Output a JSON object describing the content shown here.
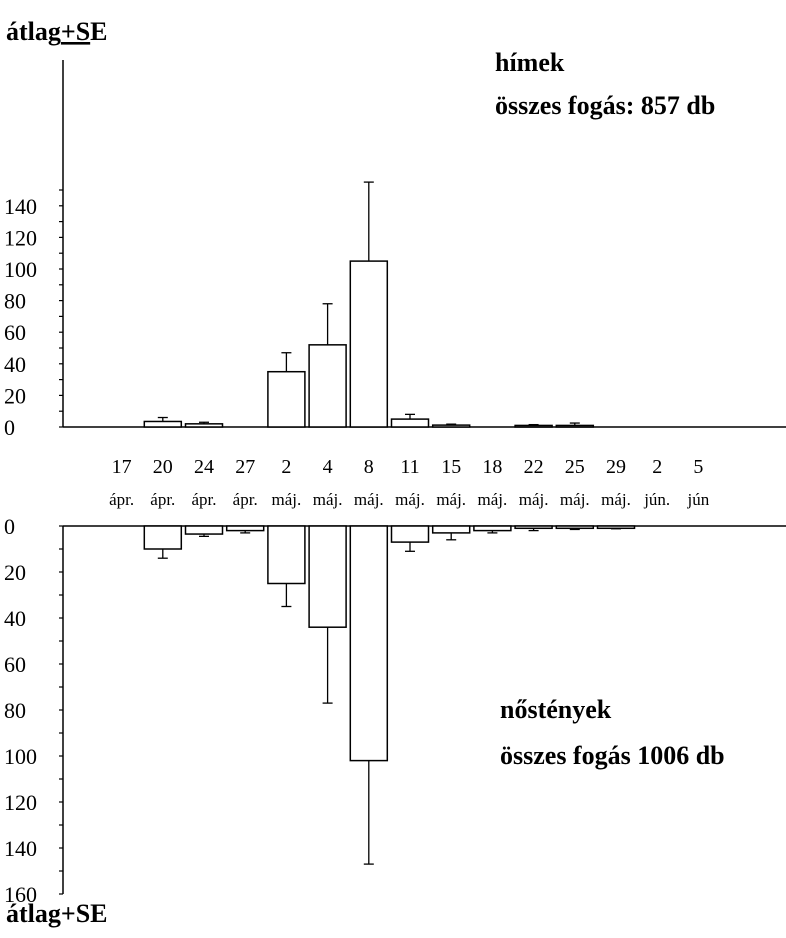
{
  "chart_data": [
    {
      "type": "bar",
      "panel": "top",
      "title": "hímek",
      "subtitle": "összes fogás: 857 db",
      "ylabel_prefix": "átlag",
      "ylabel_underlined": "+S",
      "ylabel_suffix": "E",
      "ylim": [
        0,
        150
      ],
      "yticks": [
        "0",
        "20",
        "40",
        "60",
        "80",
        "100",
        "120",
        "140"
      ],
      "values": [
        0,
        3.5,
        2,
        0,
        35,
        52,
        105,
        5,
        1.2,
        0,
        1,
        1,
        0,
        0,
        0
      ],
      "errors": [
        0,
        6,
        3,
        0,
        47,
        78,
        155,
        8,
        1.8,
        0,
        1.5,
        2.5,
        0,
        0,
        0
      ]
    },
    {
      "type": "bar",
      "panel": "bottom",
      "title": "nőstények",
      "subtitle": "összes fogás 1006 db",
      "ylabel": "átlag+SE",
      "ylim": [
        0,
        160
      ],
      "yticks": [
        "0",
        "20",
        "40",
        "60",
        "80",
        "100",
        "120",
        "140",
        "160"
      ],
      "values": [
        0,
        10,
        3.5,
        2,
        25,
        44,
        102,
        7,
        3,
        2,
        1,
        1,
        1,
        0,
        0
      ],
      "errors": [
        0,
        14,
        4.5,
        3,
        35,
        77,
        147,
        11,
        6,
        3,
        2,
        1.5,
        1.2,
        0,
        0
      ]
    }
  ],
  "categories": {
    "days": [
      "17",
      "20",
      "24",
      "27",
      "2",
      "4",
      "8",
      "11",
      "15",
      "18",
      "22",
      "25",
      "29",
      "2",
      "5"
    ],
    "months": [
      "ápr.",
      "ápr.",
      "ápr.",
      "ápr.",
      "máj.",
      "máj.",
      "máj.",
      "máj.",
      "máj.",
      "máj.",
      "máj.",
      "máj.",
      "máj.",
      "jún.",
      "jún"
    ]
  }
}
